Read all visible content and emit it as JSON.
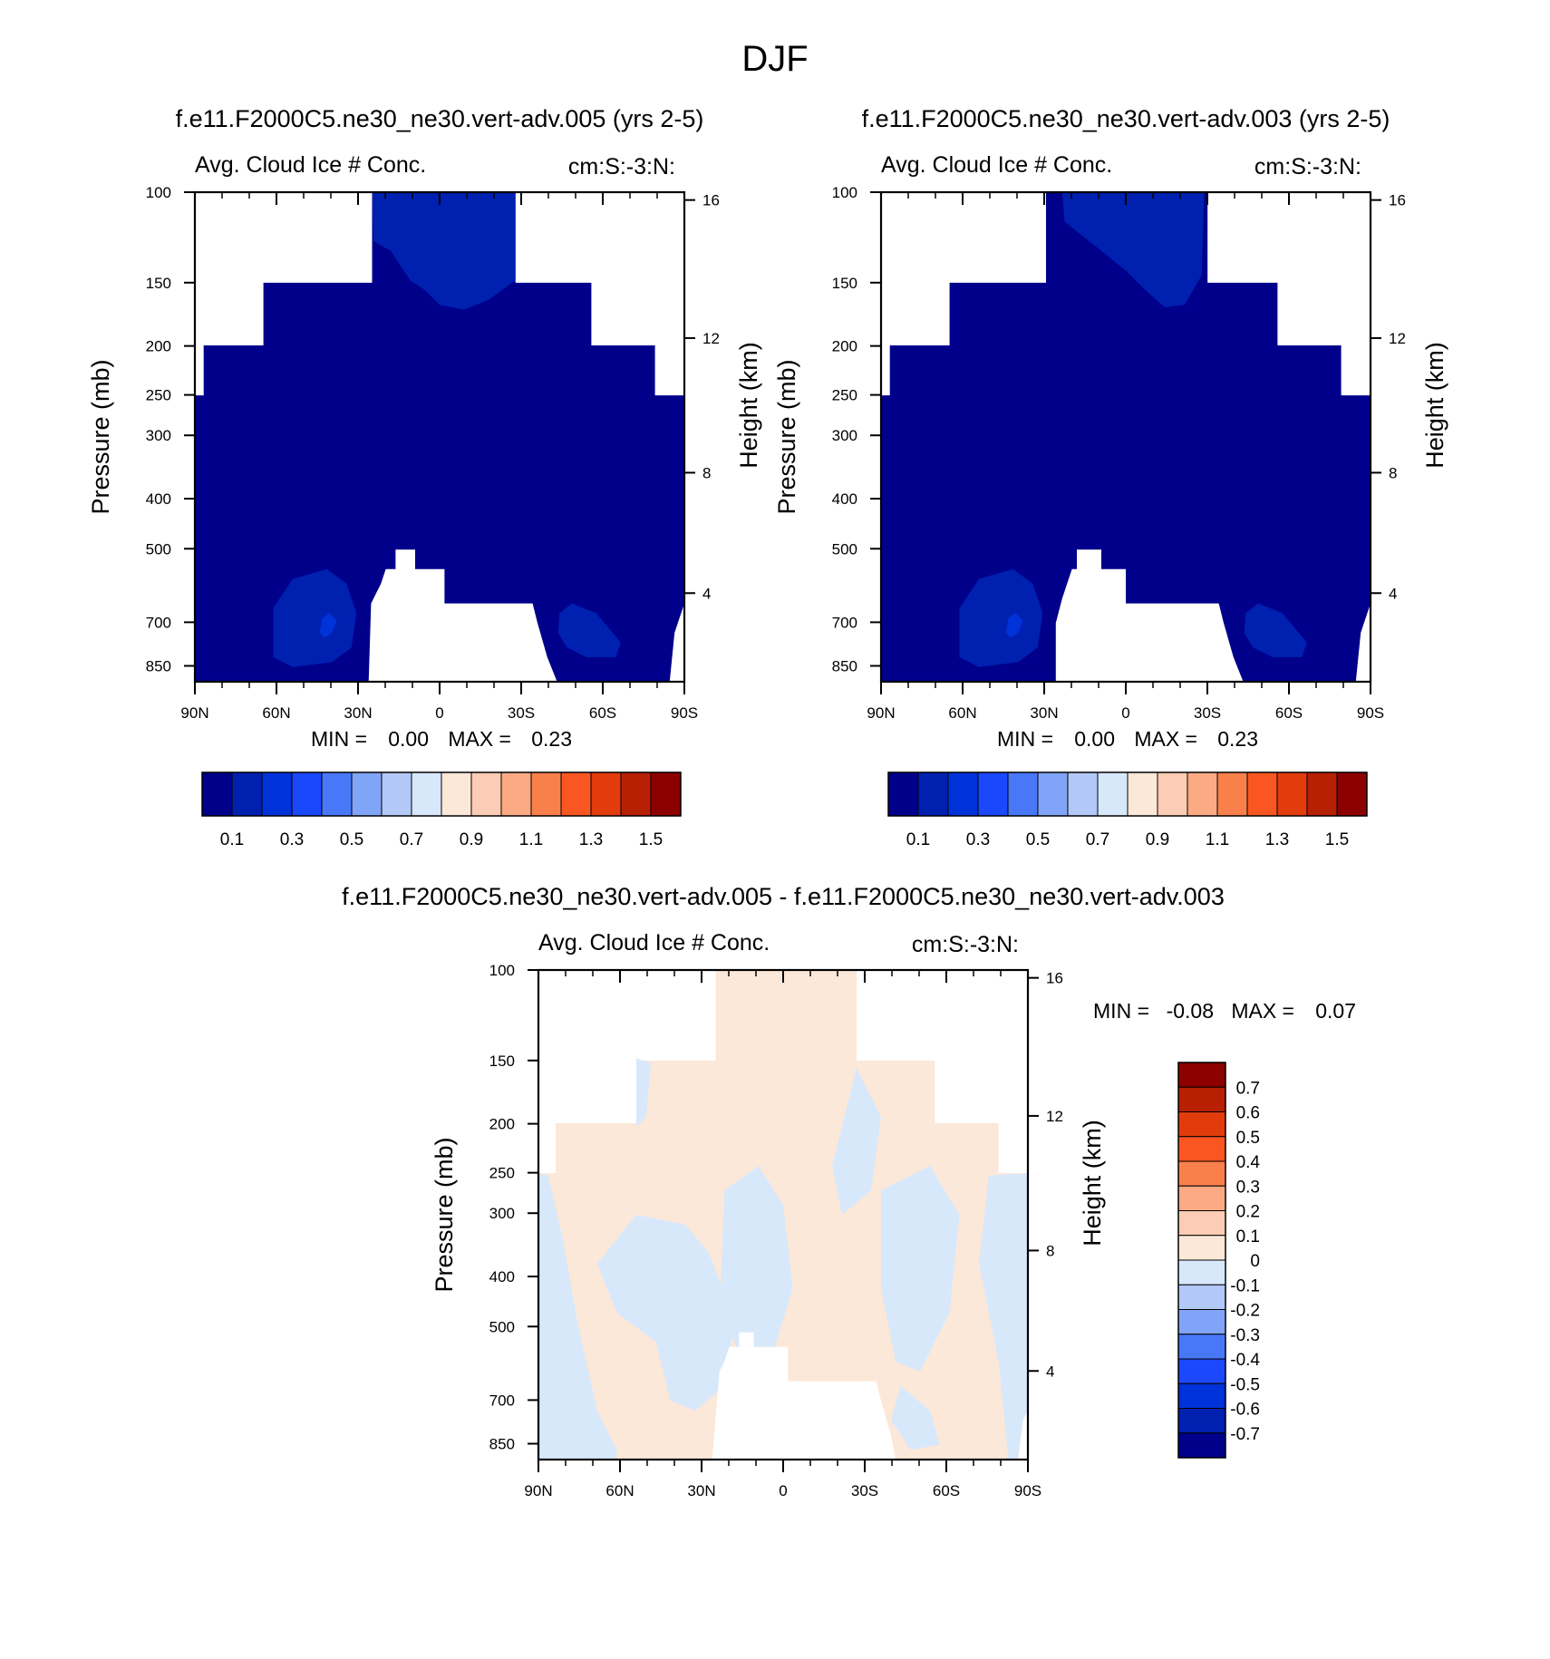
{
  "figure": {
    "title": "DJF"
  },
  "chart_data": [
    {
      "type": "heatmap",
      "panel": "top-left",
      "title": "f.e11.F2000C5.ne30_ne30.vert-adv.005 (yrs 2-5)",
      "left_string": "Avg. Cloud Ice # Conc.",
      "right_string": "cm:S:-3:N:",
      "xlabel": "",
      "ylabel": "Pressure (mb)",
      "ylabel_right": "Height (km)",
      "x_tick_labels": [
        "90N",
        "60N",
        "30N",
        "0",
        "30S",
        "60S",
        "90S"
      ],
      "y_tick_labels": [
        "100",
        "150",
        "200",
        "250",
        "300",
        "400",
        "500",
        "700",
        "850"
      ],
      "y_right_tick_labels": [
        "16",
        "12",
        "8",
        "4"
      ],
      "min_label": "MIN =",
      "min_value": "0.00",
      "max_label": "MAX =",
      "max_value": "0.23",
      "colorbar_labels": [
        "0.1",
        "0.3",
        "0.5",
        "0.7",
        "0.9",
        "1.1",
        "1.3",
        "1.5"
      ],
      "dominant_value_range": [
        0.0,
        0.1
      ],
      "local_max_regions": [
        {
          "lat_range": [
            "75N",
            "40N"
          ],
          "pressure_range_mb": [
            620,
            850
          ],
          "value_range": [
            0.1,
            0.2
          ]
        },
        {
          "lat_range": [
            "40S",
            "65S"
          ],
          "pressure_range_mb": [
            650,
            840
          ],
          "value_range": [
            0.1,
            0.2
          ]
        },
        {
          "lat_range": [
            "20N",
            "30S"
          ],
          "pressure_range_mb": [
            100,
            160
          ],
          "value_range": [
            0.1,
            0.2
          ]
        }
      ],
      "missing_data": "white (no data above the tropopause near the poles and below the surface in the tropics)",
      "grid": false
    },
    {
      "type": "heatmap",
      "panel": "top-right",
      "title": "f.e11.F2000C5.ne30_ne30.vert-adv.003 (yrs 2-5)",
      "left_string": "Avg. Cloud Ice # Conc.",
      "right_string": "cm:S:-3:N:",
      "xlabel": "",
      "ylabel": "Pressure (mb)",
      "ylabel_right": "Height (km)",
      "x_tick_labels": [
        "90N",
        "60N",
        "30N",
        "0",
        "30S",
        "60S",
        "90S"
      ],
      "y_tick_labels": [
        "100",
        "150",
        "200",
        "250",
        "300",
        "400",
        "500",
        "700",
        "850"
      ],
      "y_right_tick_labels": [
        "16",
        "12",
        "8",
        "4"
      ],
      "min_label": "MIN =",
      "min_value": "0.00",
      "max_label": "MAX =",
      "max_value": "0.23",
      "colorbar_labels": [
        "0.1",
        "0.3",
        "0.5",
        "0.7",
        "0.9",
        "1.1",
        "1.3",
        "1.5"
      ],
      "dominant_value_range": [
        0.0,
        0.1
      ],
      "local_max_regions": [
        {
          "lat_range": [
            "75N",
            "40N"
          ],
          "pressure_range_mb": [
            620,
            850
          ],
          "value_range": [
            0.1,
            0.2
          ]
        },
        {
          "lat_range": [
            "40S",
            "65S"
          ],
          "pressure_range_mb": [
            650,
            840
          ],
          "value_range": [
            0.1,
            0.2
          ]
        },
        {
          "lat_range": [
            "20N",
            "28S"
          ],
          "pressure_range_mb": [
            100,
            165
          ],
          "value_range": [
            0.1,
            0.2
          ]
        }
      ],
      "missing_data": "white (no data above the tropopause near the poles and below the surface in the tropics)",
      "grid": false
    },
    {
      "type": "heatmap",
      "panel": "bottom-difference",
      "title": "f.e11.F2000C5.ne30_ne30.vert-adv.005 - f.e11.F2000C5.ne30_ne30.vert-adv.003",
      "left_string": "Avg. Cloud Ice # Conc.",
      "right_string": "cm:S:-3:N:",
      "xlabel": "",
      "ylabel": "Pressure (mb)",
      "ylabel_right": "Height (km)",
      "x_tick_labels": [
        "90N",
        "60N",
        "30N",
        "0",
        "30S",
        "60S",
        "90S"
      ],
      "y_tick_labels": [
        "100",
        "150",
        "200",
        "250",
        "300",
        "400",
        "500",
        "700",
        "850"
      ],
      "y_right_tick_labels": [
        "16",
        "12",
        "8",
        "4"
      ],
      "min_label": "MIN =",
      "min_value": "-0.08",
      "max_label": "MAX =",
      "max_value": "0.07",
      "colorbar_labels": [
        "0.7",
        "0.6",
        "0.5",
        "0.4",
        "0.3",
        "0.2",
        "0.1",
        "0",
        "-0.1",
        "-0.2",
        "-0.3",
        "-0.4",
        "-0.5",
        "-0.6",
        "-0.7"
      ],
      "value_bins_present": [
        "-0.1 to 0",
        "0 to 0.1"
      ],
      "grid": false
    }
  ],
  "colors": {
    "ncl_blue_red": [
      "#00008b",
      "#0020b0",
      "#0032da",
      "#1c48fb",
      "#4878f8",
      "#80a4f8",
      "#b2c8f7",
      "#d8e8fb",
      "#fce8d8",
      "#fcccb4",
      "#fbaa84",
      "#f9804a",
      "#fa5622",
      "#e33c0c",
      "#b82004",
      "#8c0000"
    ],
    "diff_scale_top_to_bottom": [
      "#8c0000",
      "#b82004",
      "#e33c0c",
      "#fa5622",
      "#f9804a",
      "#fbaa84",
      "#fcccb4",
      "#fce8d8",
      "#d8e8fb",
      "#b2c8f7",
      "#80a4f8",
      "#4878f8",
      "#1c48fb",
      "#0032da",
      "#0020b0",
      "#00008b"
    ],
    "field_low": "#00008b",
    "field_mid": "#0020b0",
    "field_high": "#0032da",
    "diff_pos": "#fce8d8",
    "diff_neg": "#d8e8fb"
  }
}
